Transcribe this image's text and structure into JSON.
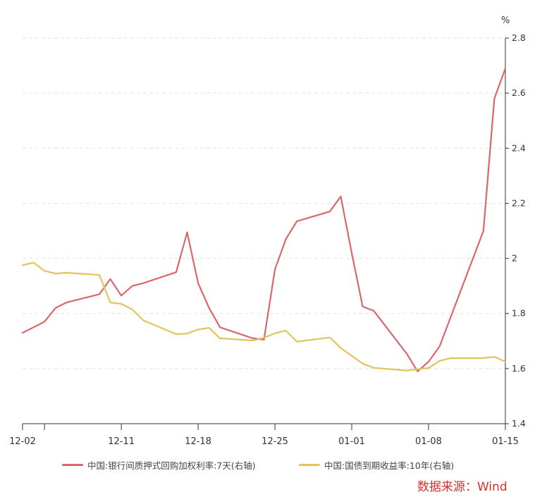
{
  "chart_data": {
    "type": "line",
    "y_unit": "%",
    "ylim": [
      1.4,
      2.8
    ],
    "y_ticks": [
      "1.4",
      "1.6",
      "1.8",
      "2",
      "2.2",
      "2.4",
      "2.6",
      "2.8"
    ],
    "y_axis_side": "right",
    "grid": "horizontal dashed",
    "x_range": [
      "2023-12-02",
      "2024-01-15"
    ],
    "x_tick_labels": [
      "12-02",
      "12-11",
      "12-18",
      "12-25",
      "01-01",
      "01-08",
      "01-15"
    ],
    "legend_position": "bottom",
    "series": [
      {
        "name": "中国:银行间质押式回购加权利率:7天(右轴)",
        "color": "#d9676b",
        "points": [
          [
            "2023-12-02",
            1.73
          ],
          [
            "2023-12-03",
            1.75
          ],
          [
            "2023-12-04",
            1.77
          ],
          [
            "2023-12-05",
            1.82
          ],
          [
            "2023-12-06",
            1.84
          ],
          [
            "2023-12-09",
            1.87
          ],
          [
            "2023-12-10",
            1.925
          ],
          [
            "2023-12-11",
            1.865
          ],
          [
            "2023-12-12",
            1.9
          ],
          [
            "2023-12-13",
            1.91
          ],
          [
            "2023-12-16",
            1.95
          ],
          [
            "2023-12-17",
            2.095
          ],
          [
            "2023-12-18",
            1.91
          ],
          [
            "2023-12-19",
            1.82
          ],
          [
            "2023-12-20",
            1.75
          ],
          [
            "2023-12-23",
            1.71
          ],
          [
            "2023-12-24",
            1.705
          ],
          [
            "2023-12-25",
            1.96
          ],
          [
            "2023-12-26",
            2.07
          ],
          [
            "2023-12-27",
            2.135
          ],
          [
            "2023-12-30",
            2.17
          ],
          [
            "2023-12-31",
            2.225
          ],
          [
            "2024-01-01",
            2.02
          ],
          [
            "2024-01-02",
            1.825
          ],
          [
            "2024-01-03",
            1.81
          ],
          [
            "2024-01-06",
            1.655
          ],
          [
            "2024-01-07",
            1.59
          ],
          [
            "2024-01-08",
            1.625
          ],
          [
            "2024-01-09",
            1.68
          ],
          [
            "2024-01-13",
            2.1
          ],
          [
            "2024-01-14",
            2.58
          ],
          [
            "2024-01-15",
            2.69
          ]
        ]
      },
      {
        "name": "中国:国债到期收益率:10年(右轴)",
        "color": "#e3c45a",
        "points": [
          [
            "2023-12-02",
            1.975
          ],
          [
            "2023-12-03",
            1.985
          ],
          [
            "2023-12-04",
            1.955
          ],
          [
            "2023-12-05",
            1.945
          ],
          [
            "2023-12-06",
            1.948
          ],
          [
            "2023-12-09",
            1.94
          ],
          [
            "2023-12-10",
            1.84
          ],
          [
            "2023-12-11",
            1.835
          ],
          [
            "2023-12-12",
            1.815
          ],
          [
            "2023-12-13",
            1.775
          ],
          [
            "2023-12-16",
            1.725
          ],
          [
            "2023-12-17",
            1.727
          ],
          [
            "2023-12-18",
            1.742
          ],
          [
            "2023-12-19",
            1.748
          ],
          [
            "2023-12-20",
            1.71
          ],
          [
            "2023-12-23",
            1.702
          ],
          [
            "2023-12-24",
            1.712
          ],
          [
            "2023-12-25",
            1.728
          ],
          [
            "2023-12-26",
            1.738
          ],
          [
            "2023-12-27",
            1.698
          ],
          [
            "2023-12-30",
            1.713
          ],
          [
            "2023-12-31",
            1.675
          ],
          [
            "2024-01-02",
            1.618
          ],
          [
            "2024-01-03",
            1.603
          ],
          [
            "2024-01-06",
            1.593
          ],
          [
            "2024-01-07",
            1.598
          ],
          [
            "2024-01-08",
            1.602
          ],
          [
            "2024-01-09",
            1.628
          ],
          [
            "2024-01-10",
            1.638
          ],
          [
            "2024-01-13",
            1.638
          ],
          [
            "2024-01-14",
            1.643
          ],
          [
            "2024-01-15",
            1.625
          ]
        ]
      }
    ]
  },
  "legend": [
    {
      "label": "中国:银行间质押式回购加权利率:7天(右轴)",
      "color": "#d9676b"
    },
    {
      "label": "中国:国债到期收益率:10年(右轴)",
      "color": "#e3c45a"
    }
  ],
  "source_text": "数据来源：Wind"
}
